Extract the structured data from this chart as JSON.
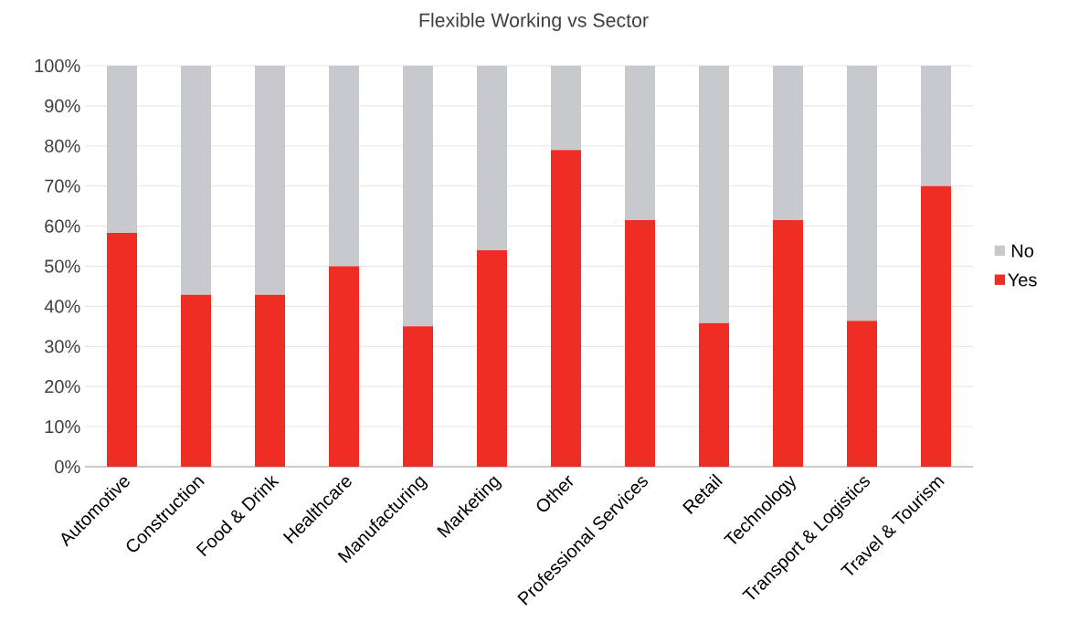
{
  "chart_data": {
    "type": "bar",
    "title": "Flexible Working vs Sector",
    "stacked": true,
    "categories": [
      "Automotive",
      "Construction",
      "Food & Drink",
      "Healthcare",
      "Manufacturing",
      "Marketing",
      "Other",
      "Professional Services",
      "Retail",
      "Technology",
      "Transport & Logistics",
      "Travel & Tourism"
    ],
    "series": [
      {
        "name": "Yes",
        "color": "#ee2e24",
        "values": [
          58.3,
          42.9,
          42.9,
          50,
          35,
          54,
          79,
          61.5,
          35.8,
          61.5,
          36.4,
          70
        ]
      },
      {
        "name": "No",
        "color": "#c8c9cc",
        "values": [
          41.7,
          57.1,
          57.1,
          50,
          65,
          46,
          21,
          38.5,
          64.2,
          38.5,
          63.6,
          30
        ]
      }
    ],
    "ylim": [
      0,
      100
    ],
    "yticks": [
      {
        "value": 0,
        "label": "0%"
      },
      {
        "value": 10,
        "label": "10%"
      },
      {
        "value": 20,
        "label": "20%"
      },
      {
        "value": 30,
        "label": "30%"
      },
      {
        "value": 40,
        "label": "40%"
      },
      {
        "value": 50,
        "label": "50%"
      },
      {
        "value": 60,
        "label": "60%"
      },
      {
        "value": 70,
        "label": "70%"
      },
      {
        "value": 80,
        "label": "80%"
      },
      {
        "value": 90,
        "label": "90%"
      },
      {
        "value": 100,
        "label": "100%"
      }
    ],
    "grid": "y",
    "legend": "right"
  }
}
